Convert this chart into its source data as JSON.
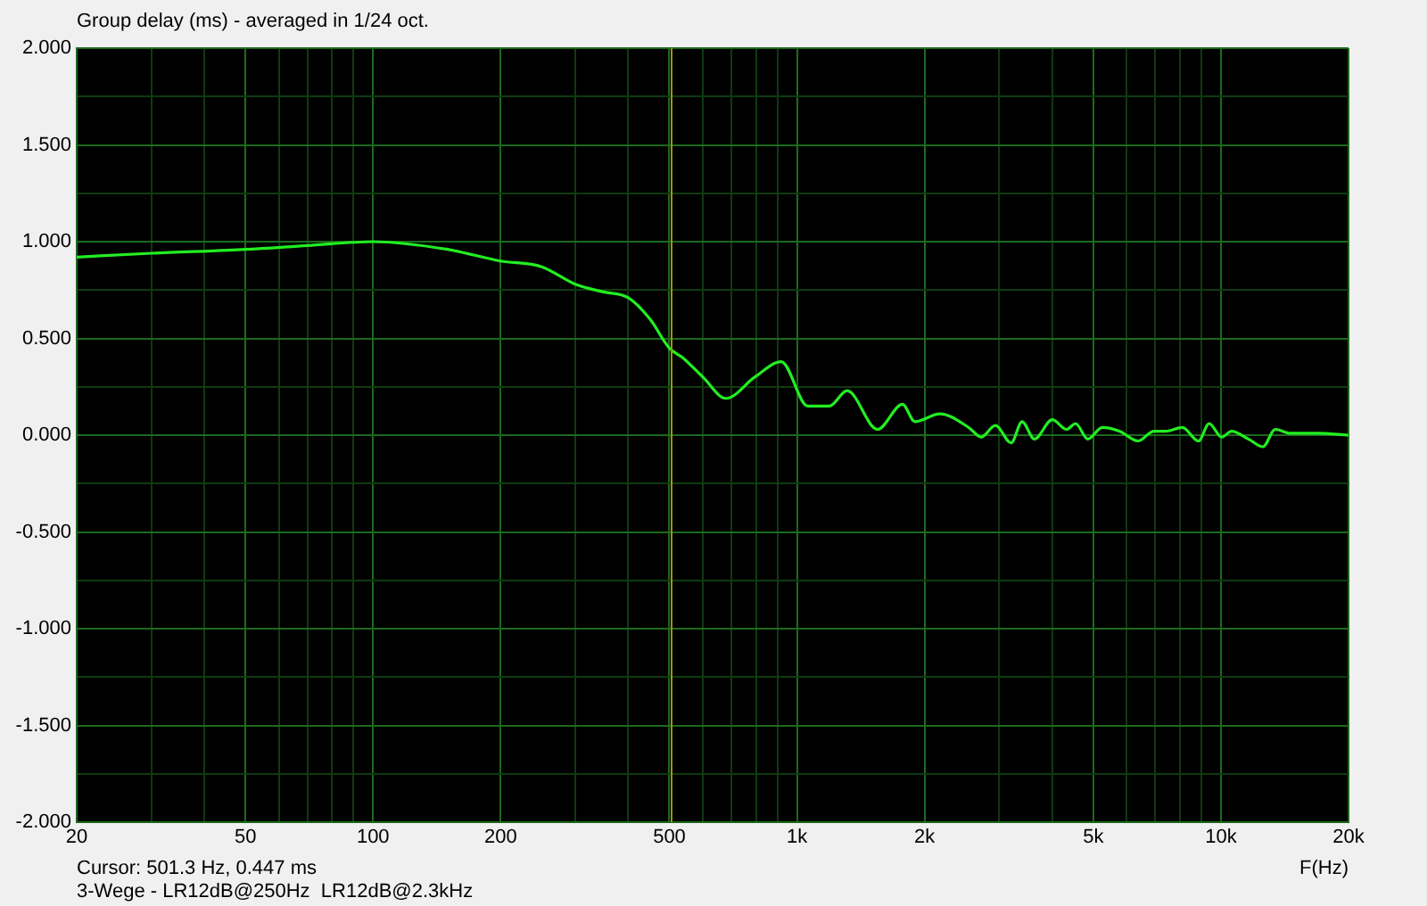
{
  "chart_data": {
    "type": "line",
    "title": "Group delay (ms) - averaged in 1/24 oct.",
    "xlabel": "F(Hz)",
    "annotations": [
      "Cursor: 501.3 Hz, 0.447 ms",
      "3-Wege - LR12dB@250Hz  LR12dB@2.3kHz"
    ],
    "x": [
      20,
      30,
      50,
      70,
      100,
      150,
      200,
      250,
      300,
      350,
      400,
      450,
      500,
      538,
      600,
      680,
      795,
      918,
      1061,
      1192,
      1313,
      1549,
      1774,
      1897,
      2174,
      2541,
      2718,
      2938,
      3201,
      3396,
      3632,
      4001,
      4327,
      4541,
      4856,
      5250,
      5781,
      6369,
      6953,
      7400,
      8111,
      8855,
      9382,
      10046,
      10600,
      11614,
      12562,
      13436,
      14600,
      17000,
      20000
    ],
    "series": [
      {
        "color": "#22ee22",
        "values": [
          0.92,
          0.94,
          0.96,
          0.98,
          1.0,
          0.96,
          0.9,
          0.87,
          0.78,
          0.74,
          0.71,
          0.6,
          0.45,
          0.4,
          0.3,
          0.19,
          0.3,
          0.38,
          0.15,
          0.15,
          0.23,
          0.03,
          0.16,
          0.07,
          0.11,
          0.04,
          -0.01,
          0.05,
          -0.04,
          0.07,
          -0.02,
          0.08,
          0.03,
          0.06,
          -0.02,
          0.04,
          0.02,
          -0.03,
          0.02,
          0.02,
          0.04,
          -0.03,
          0.06,
          -0.01,
          0.02,
          -0.02,
          -0.06,
          0.03,
          0.01,
          0.01,
          0
        ]
      }
    ],
    "xlim": [
      20,
      20000
    ],
    "log": "x",
    "xticks": [
      20,
      {
        "value": 30,
        "label": null
      },
      {
        "value": 40,
        "label": null
      },
      50,
      {
        "value": 60,
        "label": null
      },
      {
        "value": 70,
        "label": null
      },
      {
        "value": 80,
        "label": null
      },
      {
        "value": 90,
        "label": null
      },
      100,
      200,
      {
        "value": 300,
        "label": null
      },
      {
        "value": 400,
        "label": null
      },
      500,
      {
        "value": 600,
        "label": null
      },
      {
        "value": 700,
        "label": null
      },
      {
        "value": 800,
        "label": null
      },
      {
        "value": 900,
        "label": null
      },
      {
        "value": 1000,
        "label": "1k"
      },
      {
        "value": 2000,
        "label": "2k"
      },
      {
        "value": 3000,
        "label": null
      },
      {
        "value": 4000,
        "label": null
      },
      {
        "value": 5000,
        "label": "5k"
      },
      {
        "value": 6000,
        "label": null
      },
      {
        "value": 7000,
        "label": null
      },
      {
        "value": 8000,
        "label": null
      },
      {
        "value": 9000,
        "label": null
      },
      {
        "value": 10000,
        "label": "10k"
      },
      {
        "value": 20000,
        "label": "20k"
      }
    ],
    "ylim": [
      -2,
      2
    ],
    "yticks": [
      {
        "value": -2,
        "label": "-2.000"
      },
      {
        "value": -1.75,
        "label": null
      },
      {
        "value": -1.5,
        "label": "-1.500"
      },
      {
        "value": -1.25,
        "label": null
      },
      {
        "value": -1,
        "label": "-1.000"
      },
      {
        "value": -0.75,
        "label": null
      },
      {
        "value": -0.5,
        "label": "-0.500"
      },
      {
        "value": -0.25,
        "label": null
      },
      {
        "value": 0,
        "label": "0.000"
      },
      {
        "value": 0.25,
        "label": null
      },
      {
        "value": 0.5,
        "label": "0.500"
      },
      {
        "value": 0.75,
        "label": null
      },
      {
        "value": 1,
        "label": "1.000"
      },
      {
        "value": 1.25,
        "label": null
      },
      {
        "value": 1.5,
        "label": "1.500"
      },
      {
        "value": 1.75,
        "label": null
      },
      {
        "value": 2,
        "label": "2.000"
      }
    ],
    "ref_lines": [
      {
        "axis": "x",
        "value": 501.3,
        "color": "#9a9a00"
      }
    ],
    "grid": true,
    "legend": false
  }
}
